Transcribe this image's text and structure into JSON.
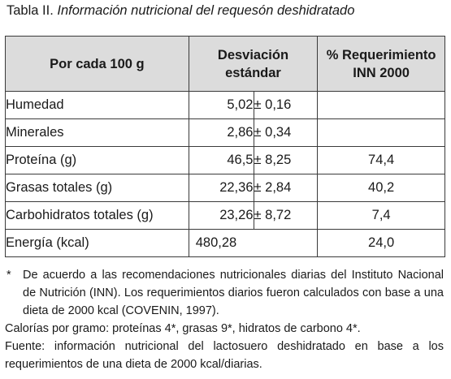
{
  "caption": {
    "prefix": "Tabla II.",
    "title": "Información nutricional del requesón deshidratado"
  },
  "table": {
    "headers": {
      "col1": "Por cada 100 g",
      "col2_line1": "Desviación",
      "col2_line2": "estándar",
      "col3_line1": "% Requerimiento",
      "col3_line2": "INN 2000"
    },
    "rows": [
      {
        "label": "Humedad",
        "value": "5,02",
        "dev": "± 0,16",
        "req": ""
      },
      {
        "label": "Minerales",
        "value": "2,86",
        "dev": "± 0,34",
        "req": ""
      },
      {
        "label": "Proteína (g)",
        "value": "46,5",
        "dev": "± 8,25",
        "req": "74,4"
      },
      {
        "label": "Grasas totales (g)",
        "value": "22,36",
        "dev": "± 2,84",
        "req": "40,2"
      },
      {
        "label": "Carbohidratos totales (g)",
        "value": "23,26",
        "dev": "± 8,72",
        "req": "7,4"
      }
    ],
    "energy": {
      "label": "Energía (kcal)",
      "value": "480,28",
      "req": "24,0"
    }
  },
  "notes": {
    "star_mark": "*",
    "star_text": "De acuerdo a las recomendaciones nutricionales diarias del Instituto Nacional de Nutrición (INN). Los requerimientos diarios fueron calculados con base a una dieta de 2000 kcal (COVENIN, 1997).",
    "calories": "Calorías por gramo: proteínas 4*, grasas 9*, hidratos de carbono 4*.",
    "source": "Fuente: información nutricional del lactosuero deshidratado en base a los requerimientos de una dieta de 2000 kcal/diarias."
  }
}
